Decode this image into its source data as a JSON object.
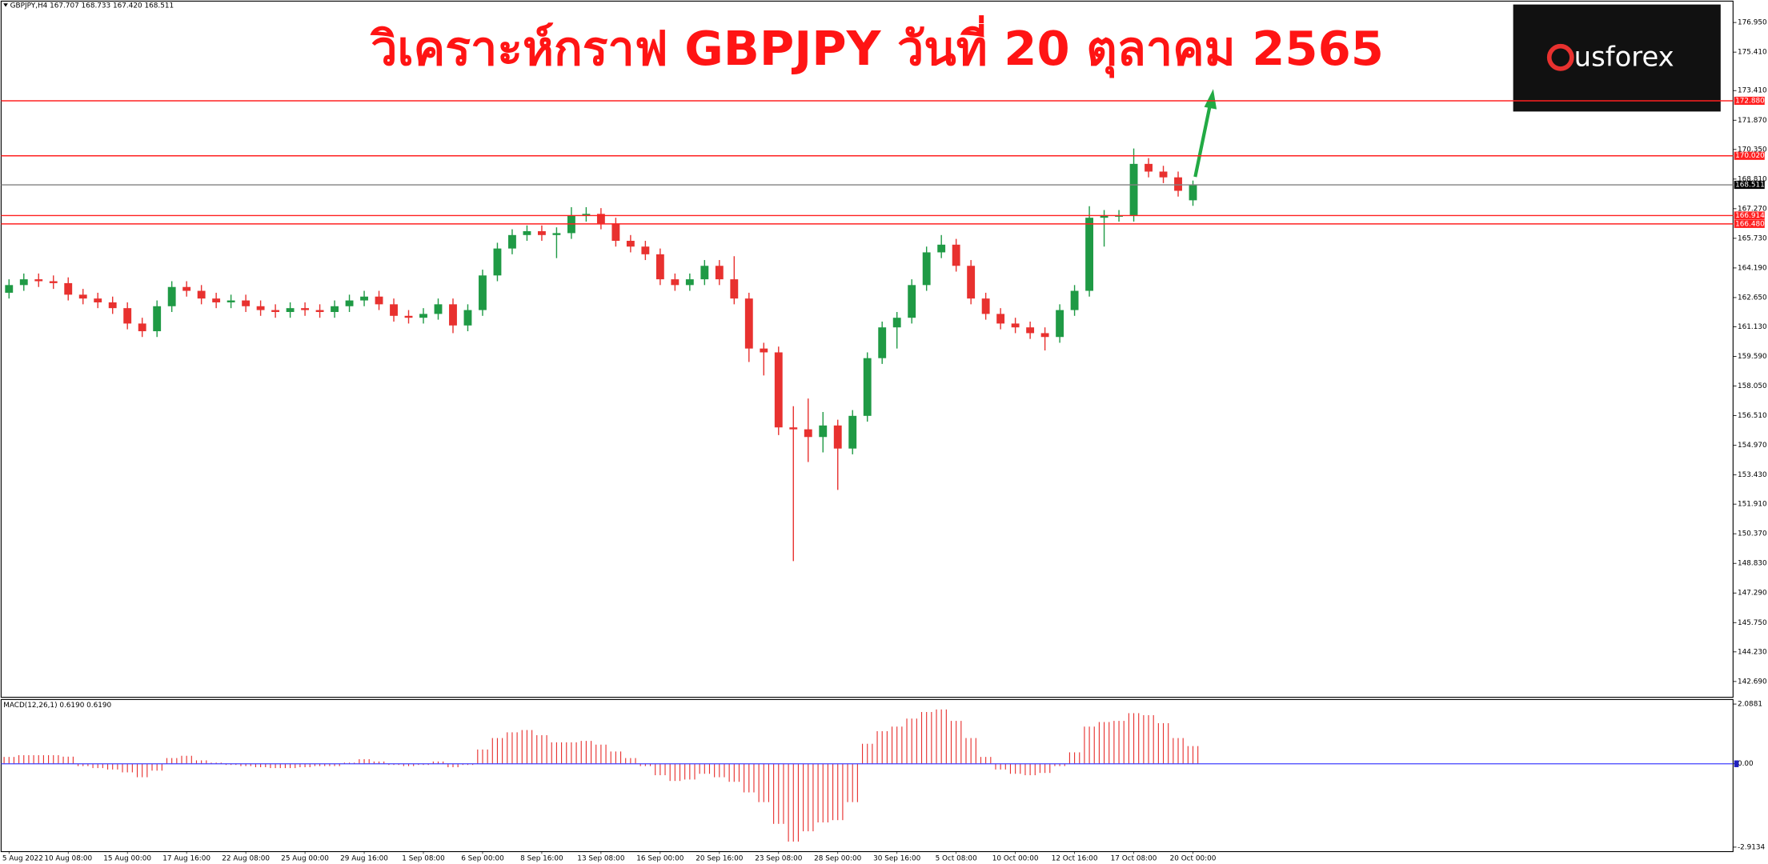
{
  "chart_data": [
    {
      "type": "candlestick",
      "title": "วิเคราะห์กราฟ GBPJPY วันที่ 20 ตุลาคม 2565",
      "symbol_info": "GBPJPY,H4  167.707 168.733 167.420 168.511",
      "up_color": "#1f9a45",
      "down_color": "#e8312f",
      "categories": [
        "5 Aug 2022",
        null,
        null,
        null,
        "10 Aug 08:00",
        null,
        null,
        null,
        "15 Aug 00:00",
        null,
        null,
        null,
        "17 Aug 16:00",
        null,
        null,
        null,
        "22 Aug 08:00",
        null,
        null,
        null,
        "25 Aug 00:00",
        null,
        null,
        null,
        "29 Aug 16:00",
        null,
        null,
        null,
        "1 Sep 08:00",
        null,
        null,
        null,
        "6 Sep 00:00",
        null,
        null,
        null,
        "8 Sep 16:00",
        null,
        null,
        null,
        "13 Sep 08:00",
        null,
        null,
        null,
        "16 Sep 00:00",
        null,
        null,
        null,
        "20 Sep 16:00",
        null,
        null,
        null,
        "23 Sep 08:00",
        null,
        null,
        null,
        "28 Sep 00:00",
        null,
        null,
        null,
        "30 Sep 16:00",
        null,
        null,
        null,
        "5 Oct 08:00",
        null,
        null,
        null,
        "10 Oct 00:00",
        null,
        null,
        null,
        "12 Oct 16:00",
        null,
        null,
        null,
        "17 Oct 08:00",
        null,
        null,
        null,
        "20 Oct 00:00"
      ],
      "open": [
        162.9,
        163.3,
        163.6,
        163.5,
        163.4,
        162.8,
        162.6,
        162.4,
        162.1,
        161.3,
        160.9,
        162.2,
        163.2,
        163.0,
        162.6,
        162.4,
        162.5,
        162.2,
        162.0,
        161.9,
        162.1,
        162.0,
        161.9,
        162.2,
        162.5,
        162.7,
        162.3,
        161.7,
        161.6,
        161.8,
        162.3,
        161.2,
        162.0,
        163.8,
        165.2,
        165.9,
        166.1,
        165.9,
        166.0,
        166.9,
        167.0,
        166.5,
        165.6,
        165.3,
        164.9,
        163.6,
        163.3,
        163.6,
        164.3,
        163.6,
        162.6,
        160.0,
        159.8,
        155.9,
        155.8,
        155.4,
        156.0,
        154.8,
        156.5,
        159.5,
        161.1,
        161.6,
        163.3,
        165.0,
        165.4,
        164.3,
        162.6,
        161.8,
        161.3,
        161.1,
        160.8,
        160.6,
        162.0,
        163.0,
        166.8,
        166.9,
        166.9,
        169.6,
        169.2,
        168.9,
        167.707
      ],
      "high": [
        163.6,
        163.9,
        163.9,
        163.8,
        163.7,
        163.1,
        162.9,
        162.7,
        162.4,
        161.6,
        162.5,
        163.5,
        163.5,
        163.3,
        162.9,
        162.8,
        162.8,
        162.5,
        162.3,
        162.4,
        162.4,
        162.3,
        162.5,
        162.8,
        163.0,
        163.0,
        162.6,
        162.0,
        162.1,
        162.6,
        162.6,
        162.3,
        164.1,
        165.5,
        166.2,
        166.4,
        166.4,
        166.3,
        167.35,
        167.35,
        167.3,
        166.8,
        165.9,
        165.6,
        165.2,
        163.9,
        163.9,
        164.6,
        164.6,
        164.8,
        162.9,
        160.3,
        160.1,
        157.0,
        157.4,
        156.7,
        156.3,
        156.8,
        159.8,
        161.4,
        161.9,
        163.6,
        165.3,
        165.9,
        165.7,
        164.6,
        162.9,
        162.1,
        161.6,
        161.4,
        161.1,
        162.3,
        163.3,
        167.4,
        167.2,
        167.2,
        170.4,
        169.9,
        169.5,
        169.2,
        168.733
      ],
      "low": [
        162.6,
        163.0,
        163.2,
        163.1,
        162.5,
        162.3,
        162.1,
        161.8,
        161.0,
        160.6,
        160.6,
        161.9,
        162.7,
        162.3,
        162.1,
        162.1,
        161.9,
        161.7,
        161.6,
        161.6,
        161.7,
        161.6,
        161.6,
        161.9,
        162.2,
        162.0,
        161.4,
        161.3,
        161.3,
        161.5,
        160.8,
        160.9,
        161.7,
        163.5,
        164.9,
        165.6,
        165.6,
        164.7,
        165.7,
        166.6,
        166.2,
        165.3,
        165.0,
        164.6,
        163.3,
        163.0,
        163.0,
        163.3,
        163.3,
        162.3,
        159.3,
        158.6,
        155.5,
        148.95,
        154.1,
        154.6,
        152.65,
        154.5,
        156.2,
        159.2,
        160.0,
        161.3,
        163.0,
        164.7,
        164.0,
        162.3,
        161.5,
        161.0,
        160.8,
        160.5,
        159.9,
        160.3,
        161.7,
        162.7,
        165.3,
        166.6,
        166.6,
        168.9,
        168.6,
        167.9,
        167.42
      ],
      "close": [
        163.3,
        163.6,
        163.5,
        163.4,
        162.8,
        162.6,
        162.4,
        162.1,
        161.3,
        160.9,
        162.2,
        163.2,
        163.0,
        162.6,
        162.4,
        162.5,
        162.2,
        162.0,
        161.9,
        162.1,
        162.0,
        161.9,
        162.2,
        162.5,
        162.7,
        162.3,
        161.7,
        161.6,
        161.8,
        162.3,
        161.2,
        162.0,
        163.8,
        165.2,
        165.9,
        166.1,
        165.9,
        166.0,
        166.9,
        167.0,
        166.5,
        165.6,
        165.3,
        164.9,
        163.6,
        163.3,
        163.6,
        164.3,
        163.6,
        162.6,
        160.0,
        159.8,
        155.9,
        155.8,
        155.4,
        156.0,
        154.8,
        156.5,
        159.5,
        161.1,
        161.6,
        163.3,
        165.0,
        165.4,
        164.3,
        162.6,
        161.8,
        161.3,
        161.1,
        160.8,
        160.6,
        162.0,
        163.0,
        166.8,
        166.9,
        166.9,
        169.6,
        169.2,
        168.9,
        168.2,
        168.511
      ],
      "ylim": [
        141.81,
        178.12
      ],
      "yticks": [
        {
          "value": 176.95,
          "label": "176.950"
        },
        {
          "value": 175.41,
          "label": "175.410"
        },
        {
          "value": 173.41,
          "label": "173.410"
        },
        {
          "value": 171.87,
          "label": "171.870"
        },
        {
          "value": 170.35,
          "label": "170.350"
        },
        {
          "value": 168.81,
          "label": "168.810"
        },
        {
          "value": 167.27,
          "label": "167.270"
        },
        {
          "value": 165.73,
          "label": "165.730"
        },
        {
          "value": 164.19,
          "label": "164.190"
        },
        {
          "value": 162.65,
          "label": "162.650"
        },
        {
          "value": 161.13,
          "label": "161.130"
        },
        {
          "value": 159.59,
          "label": "159.590"
        },
        {
          "value": 158.05,
          "label": "158.050"
        },
        {
          "value": 156.51,
          "label": "156.510"
        },
        {
          "value": 154.97,
          "label": "154.970"
        },
        {
          "value": 153.43,
          "label": "153.430"
        },
        {
          "value": 151.91,
          "label": "151.910"
        },
        {
          "value": 150.37,
          "label": "150.370"
        },
        {
          "value": 148.83,
          "label": "148.830"
        },
        {
          "value": 147.29,
          "label": "147.290"
        },
        {
          "value": 145.75,
          "label": "145.750"
        },
        {
          "value": 144.23,
          "label": "144.230"
        },
        {
          "value": 142.69,
          "label": "142.690"
        }
      ],
      "levels": [
        {
          "value": 172.88,
          "label": "172.880",
          "color": "#ff2020"
        },
        {
          "value": 170.02,
          "label": "170.020",
          "color": "#ff2020"
        },
        {
          "value": 168.511,
          "label": "168.511",
          "color": "#808080"
        },
        {
          "value": 166.914,
          "label": "166.914",
          "color": "#ff2020"
        },
        {
          "value": 166.48,
          "label": "166.480",
          "color": "#ff2020"
        }
      ],
      "logo": "usforex"
    },
    {
      "type": "histogram",
      "title": "MACD(12,26,1) 0.6190 0.6190",
      "color": "#e8312f",
      "values": [
        0.24,
        0.3,
        0.3,
        0.3,
        0.25,
        -0.08,
        -0.15,
        -0.2,
        -0.3,
        -0.47,
        -0.24,
        0.2,
        0.28,
        0.12,
        0.04,
        -0.04,
        -0.08,
        -0.12,
        -0.15,
        -0.15,
        -0.12,
        -0.08,
        -0.08,
        0.04,
        0.16,
        0.08,
        -0.04,
        -0.08,
        -0.04,
        0.08,
        -0.12,
        -0.04,
        0.5,
        0.9,
        1.1,
        1.18,
        1.0,
        0.75,
        0.75,
        0.8,
        0.67,
        0.43,
        0.2,
        -0.08,
        -0.4,
        -0.6,
        -0.55,
        -0.35,
        -0.47,
        -0.63,
        -1.0,
        -1.34,
        -2.1,
        -2.72,
        -2.36,
        -2.05,
        -1.97,
        -1.34,
        0.7,
        1.14,
        1.3,
        1.58,
        1.81,
        1.9,
        1.5,
        0.9,
        0.24,
        -0.2,
        -0.35,
        -0.4,
        -0.32,
        -0.08,
        0.4,
        1.3,
        1.46,
        1.5,
        1.77,
        1.7,
        1.42,
        0.9,
        0.619
      ],
      "ylim": [
        -3.07,
        2.246
      ],
      "yticks": [
        2.0881,
        {
          "value": 0,
          "label": "0.00"
        },
        -2.9134
      ]
    }
  ]
}
